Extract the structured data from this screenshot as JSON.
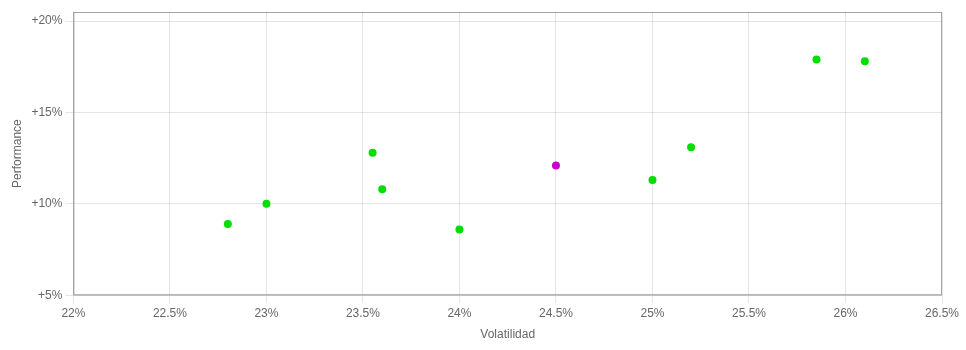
{
  "chart_data": {
    "type": "scatter",
    "x_label": "Volatilidad",
    "y_label": "Performance",
    "series": [
      {
        "color": "#00dd00",
        "x": [
          0.228,
          0.23,
          0.2355,
          0.236,
          0.24,
          0.25,
          0.252,
          0.2585,
          0.261
        ],
        "values": [
          0.089,
          0.1,
          0.128,
          0.108,
          0.086,
          0.113,
          0.131,
          0.179,
          0.178
        ]
      },
      {
        "color": "#cc00cc",
        "x": [
          0.245
        ],
        "values": [
          0.121
        ]
      }
    ],
    "xlim": [
      0.22,
      0.265
    ],
    "ylim": [
      0.05,
      0.205
    ],
    "xticks": [
      {
        "value": 0.22,
        "label": "22%"
      },
      {
        "value": 0.225,
        "label": "22.5%"
      },
      {
        "value": 0.23,
        "label": "23%"
      },
      {
        "value": 0.235,
        "label": "23.5%"
      },
      {
        "value": 0.24,
        "label": "24%"
      },
      {
        "value": 0.245,
        "label": "24.5%"
      },
      {
        "value": 0.25,
        "label": "25%"
      },
      {
        "value": 0.255,
        "label": "25.5%"
      },
      {
        "value": 0.26,
        "label": "26%"
      },
      {
        "value": 0.265,
        "label": "26.5%"
      }
    ],
    "yticks": [
      {
        "value": 0.05,
        "label": "+5%"
      },
      {
        "value": 0.1,
        "label": "+10%"
      },
      {
        "value": 0.15,
        "label": "+15%"
      },
      {
        "value": 0.2,
        "label": "+20%"
      }
    ],
    "grid": true
  }
}
